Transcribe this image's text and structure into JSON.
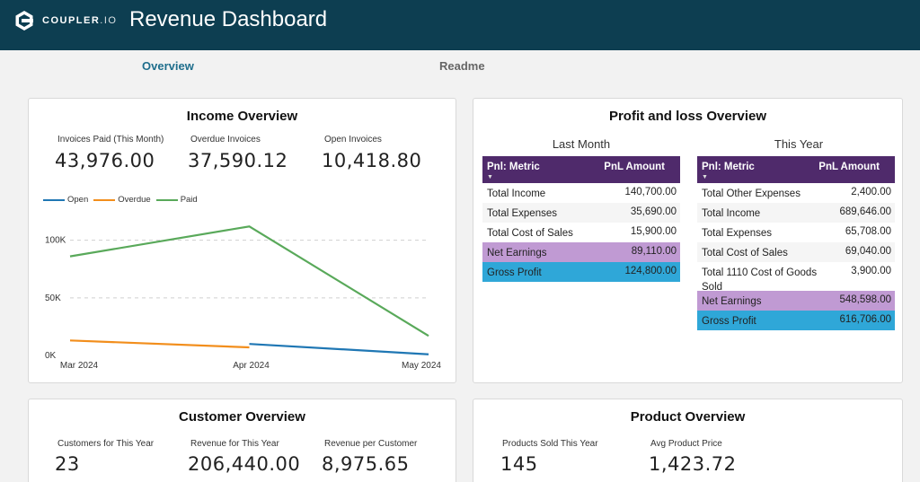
{
  "header": {
    "brand": "COUPLER",
    "brand_suffix": ".IO",
    "title": "Revenue Dashboard",
    "bg_color": "#0d3e51"
  },
  "tabs": [
    {
      "label": "Overview",
      "active": true
    },
    {
      "label": "Readme",
      "active": false
    }
  ],
  "income": {
    "title": "Income Overview",
    "kpis": [
      {
        "label": "Invoices Paid (This Month)",
        "value": "43,976.00"
      },
      {
        "label": "Overdue Invoices",
        "value": "37,590.12"
      },
      {
        "label": "Open Invoices",
        "value": "10,418.80"
      }
    ],
    "legend": [
      {
        "name": "Open",
        "color": "#1f77b4"
      },
      {
        "name": "Overdue",
        "color": "#f28e1c"
      },
      {
        "name": "Paid",
        "color": "#59a95a"
      }
    ]
  },
  "chart_data": {
    "type": "line",
    "x": [
      "Mar 2024",
      "Apr 2024",
      "May 2024"
    ],
    "series": [
      {
        "name": "Open",
        "color": "#1f77b4",
        "values": [
          null,
          10000,
          1000
        ]
      },
      {
        "name": "Overdue",
        "color": "#f28e1c",
        "values": [
          13000,
          7000,
          null
        ]
      },
      {
        "name": "Paid",
        "color": "#59a95a",
        "values": [
          86000,
          112000,
          17000
        ]
      }
    ],
    "yticks": [
      {
        "value": 0,
        "label": "0K"
      },
      {
        "value": 50000,
        "label": "50K"
      },
      {
        "value": 100000,
        "label": "100K"
      }
    ],
    "ylim": [
      0,
      120000
    ],
    "title": "",
    "xlabel": "",
    "ylabel": ""
  },
  "pnl": {
    "title": "Profit and loss Overview",
    "col_metric": "Pnl: Metric",
    "col_amount": "PnL Amount",
    "last_month": {
      "label": "Last Month",
      "rows": [
        {
          "metric": "Total Income",
          "amount": "140,700.00",
          "kind": "normal"
        },
        {
          "metric": "Total Expenses",
          "amount": "35,690.00",
          "kind": "normal"
        },
        {
          "metric": "Total Cost of Sales",
          "amount": "15,900.00",
          "kind": "normal"
        },
        {
          "metric": "Net Earnings",
          "amount": "89,110.00",
          "kind": "net"
        },
        {
          "metric": "Gross Profit",
          "amount": "124,800.00",
          "kind": "gross"
        }
      ]
    },
    "this_year": {
      "label": "This Year",
      "rows": [
        {
          "metric": "Total Other Expenses",
          "amount": "2,400.00",
          "kind": "normal"
        },
        {
          "metric": "Total Income",
          "amount": "689,646.00",
          "kind": "normal"
        },
        {
          "metric": "Total Expenses",
          "amount": "65,708.00",
          "kind": "normal"
        },
        {
          "metric": "Total Cost of Sales",
          "amount": "69,040.00",
          "kind": "normal"
        },
        {
          "metric": "Total 1110 Cost of Goods Sold",
          "amount": "3,900.00",
          "kind": "tall"
        },
        {
          "metric": "Net Earnings",
          "amount": "548,598.00",
          "kind": "net"
        },
        {
          "metric": "Gross Profit",
          "amount": "616,706.00",
          "kind": "gross"
        }
      ]
    }
  },
  "customer": {
    "title": "Customer Overview",
    "kpis": [
      {
        "label": "Customers for This Year",
        "value": "23"
      },
      {
        "label": "Revenue for This Year",
        "value": "206,440.00"
      },
      {
        "label": "Revenue per Customer",
        "value": "8,975.65"
      }
    ]
  },
  "product": {
    "title": "Product Overview",
    "kpis": [
      {
        "label": "Products Sold This Year",
        "value": "145"
      },
      {
        "label": "Avg Product Price",
        "value": "1,423.72"
      }
    ]
  }
}
